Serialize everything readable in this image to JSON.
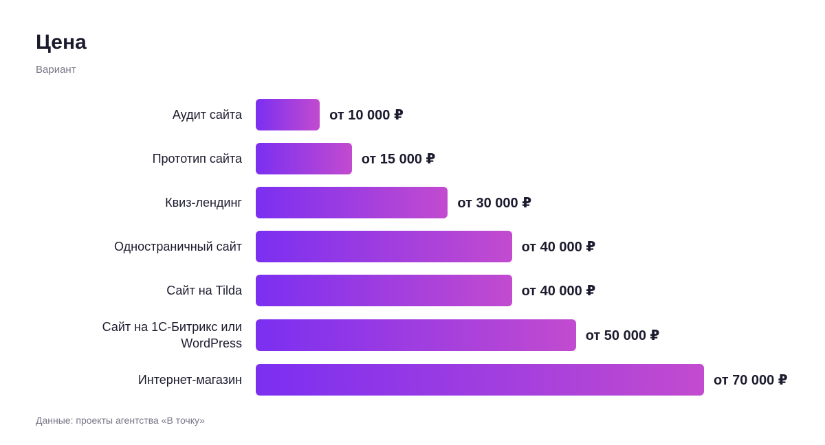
{
  "chart_data": {
    "type": "bar",
    "orientation": "horizontal",
    "title": "Цена",
    "subtitle": "Вариант",
    "source": "Данные: проекты агентства «В точку»",
    "categories": [
      "Аудит сайта",
      "Прототип сайта",
      "Квиз-лендинг",
      "Одностраничный сайт",
      "Сайт на Tilda",
      "Сайт на 1С-Битрикс или WordPress",
      "Интернет-магазин"
    ],
    "values": [
      10000,
      15000,
      30000,
      40000,
      40000,
      50000,
      70000
    ],
    "value_labels": [
      "от 10 000 ₽",
      "от 15 000 ₽",
      "от 30 000 ₽",
      "от 40 000 ₽",
      "от 40 000 ₽",
      "от 50 000 ₽",
      "от 70 000 ₽"
    ],
    "xlim": [
      0,
      70000
    ],
    "colors": [
      "#7b2ff1",
      "#c24bcf"
    ]
  }
}
